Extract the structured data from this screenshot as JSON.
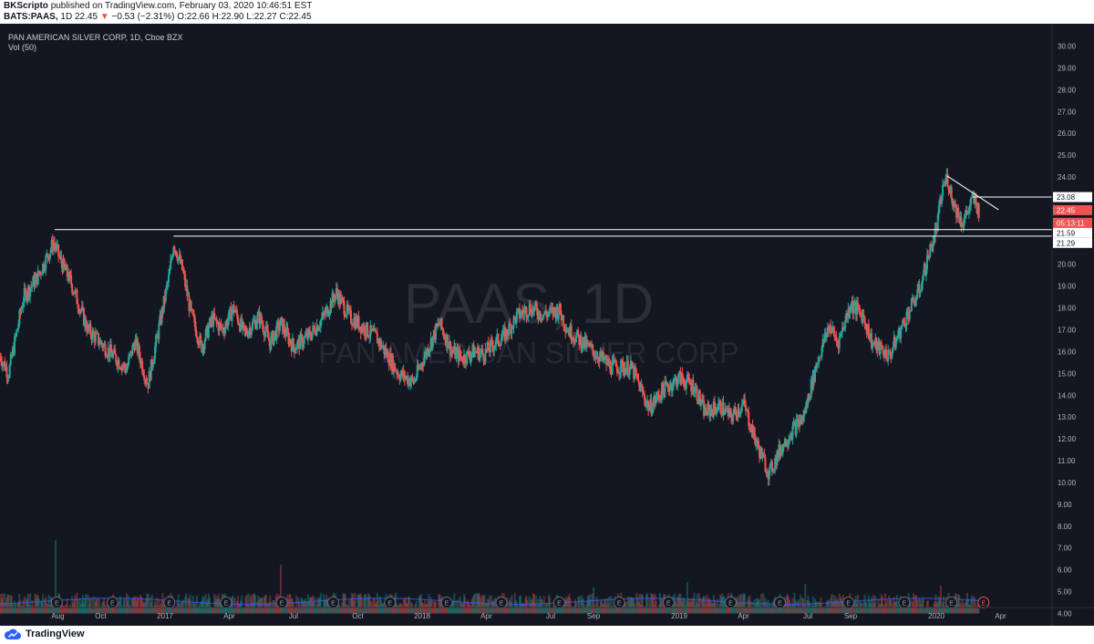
{
  "header": {
    "publisher": "BKScripto",
    "published_text": "published on TradingView.com, February 03, 2020 10:46:51 EST",
    "symbol": "BATS:PAAS,",
    "interval": "1D",
    "last": "22.45",
    "change": "−0.53 (−2.31%)",
    "ohlc": "O:22.66 H:22.90 L:22.27 C:22.45"
  },
  "legend": {
    "title": "PAN AMERICAN SILVER CORP, 1D, Cboe BZX",
    "volume": "Vol (50)"
  },
  "watermark": {
    "symbol": "PAAS, 1D",
    "name": "PAN AMERICAN SILVER CORP"
  },
  "footer": {
    "brand": "TradingView"
  },
  "colors": {
    "background": "#131722",
    "up": "#26a69a",
    "down": "#ef5350",
    "lines": "#ffffff",
    "axis_text": "#b2b5be",
    "volume_ma": "#2962ff"
  },
  "chart_data": {
    "type": "candlestick",
    "symbol": "PAAS",
    "interval": "1D",
    "y_axis": {
      "ticks": [
        "30.00",
        "29.00",
        "28.00",
        "27.00",
        "26.00",
        "25.00",
        "24.00",
        "23.00",
        "22.00",
        "21.00",
        "20.00",
        "19.00",
        "18.00",
        "17.00",
        "16.00",
        "15.00",
        "14.00",
        "13.00",
        "12.00",
        "11.00",
        "10.00",
        "9.00",
        "8.00",
        "7.00",
        "6.00",
        "5.00",
        "4.00"
      ],
      "range": [
        4,
        30
      ]
    },
    "x_axis": {
      "ticks": [
        {
          "label": "Aug",
          "x": 0.6
        },
        {
          "label": "Oct",
          "x": 2.6
        },
        {
          "label": "2017",
          "x": 5.6
        },
        {
          "label": "Apr",
          "x": 8.6
        },
        {
          "label": "Jul",
          "x": 11.6
        },
        {
          "label": "Oct",
          "x": 14.6
        },
        {
          "label": "2018",
          "x": 17.6
        },
        {
          "label": "Apr",
          "x": 20.6
        },
        {
          "label": "Jul",
          "x": 23.6
        },
        {
          "label": "Sep",
          "x": 25.6
        },
        {
          "label": "2019",
          "x": 29.6
        },
        {
          "label": "Apr",
          "x": 32.6
        },
        {
          "label": "Jul",
          "x": 35.6
        },
        {
          "label": "Sep",
          "x": 37.6
        },
        {
          "label": "2020",
          "x": 41.6
        },
        {
          "label": "Apr",
          "x": 44.6
        }
      ],
      "range": [
        -2.1,
        47
      ]
    },
    "price_path": [
      [
        -2.1,
        15.8
      ],
      [
        -1.7,
        15.0
      ],
      [
        -1.0,
        18.5
      ],
      [
        -0.3,
        19.5
      ],
      [
        0.4,
        21.0
      ],
      [
        0.8,
        20.0
      ],
      [
        1.2,
        19.2
      ],
      [
        2.0,
        17.0
      ],
      [
        3.0,
        16.0
      ],
      [
        3.8,
        15.2
      ],
      [
        4.2,
        16.5
      ],
      [
        4.8,
        14.5
      ],
      [
        5.3,
        17.0
      ],
      [
        5.8,
        19.5
      ],
      [
        6.0,
        21.0
      ],
      [
        6.4,
        19.8
      ],
      [
        6.8,
        17.8
      ],
      [
        7.3,
        16.2
      ],
      [
        7.8,
        17.5
      ],
      [
        8.3,
        17.0
      ],
      [
        8.8,
        18.0
      ],
      [
        9.3,
        16.8
      ],
      [
        10.0,
        17.6
      ],
      [
        10.5,
        16.4
      ],
      [
        11.0,
        17.3
      ],
      [
        11.6,
        16.2
      ],
      [
        12.4,
        16.8
      ],
      [
        13.0,
        17.6
      ],
      [
        13.6,
        18.7
      ],
      [
        14.2,
        17.6
      ],
      [
        14.6,
        17.3
      ],
      [
        15.5,
        16.6
      ],
      [
        16.5,
        15.0
      ],
      [
        17.2,
        14.6
      ],
      [
        17.8,
        16.0
      ],
      [
        18.4,
        17.3
      ],
      [
        19.0,
        16.0
      ],
      [
        19.5,
        15.7
      ],
      [
        20.0,
        16.0
      ],
      [
        20.5,
        15.9
      ],
      [
        21.0,
        16.4
      ],
      [
        21.5,
        16.8
      ],
      [
        22.0,
        17.6
      ],
      [
        22.6,
        18.0
      ],
      [
        23.3,
        17.7
      ],
      [
        24.0,
        17.9
      ],
      [
        24.4,
        17.0
      ],
      [
        25.0,
        16.5
      ],
      [
        25.6,
        16.0
      ],
      [
        26.4,
        15.3
      ],
      [
        27.0,
        15.3
      ],
      [
        27.4,
        15.2
      ],
      [
        28.2,
        13.4
      ],
      [
        28.8,
        14.2
      ],
      [
        29.6,
        14.8
      ],
      [
        30.3,
        14.4
      ],
      [
        30.8,
        13.2
      ],
      [
        31.5,
        13.5
      ],
      [
        32.0,
        13.0
      ],
      [
        32.6,
        13.6
      ],
      [
        33.2,
        11.8
      ],
      [
        33.8,
        10.4
      ],
      [
        34.3,
        11.5
      ],
      [
        34.8,
        12.3
      ],
      [
        35.4,
        13.0
      ],
      [
        36.0,
        15.4
      ],
      [
        36.6,
        17.2
      ],
      [
        37.0,
        16.4
      ],
      [
        37.6,
        18.2
      ],
      [
        38.2,
        17.6
      ],
      [
        38.6,
        16.4
      ],
      [
        39.4,
        15.8
      ],
      [
        40.2,
        17.6
      ],
      [
        40.8,
        18.8
      ],
      [
        41.2,
        20.3
      ],
      [
        41.6,
        21.6
      ],
      [
        41.9,
        23.5
      ],
      [
        42.1,
        24.0
      ],
      [
        42.4,
        22.8
      ],
      [
        42.8,
        21.9
      ],
      [
        43.1,
        22.5
      ],
      [
        43.3,
        23.0
      ],
      [
        43.6,
        22.45
      ]
    ],
    "volume": {
      "label": "Vol (50)",
      "range": [
        0,
        42000000
      ],
      "typical": 3500000,
      "spikes": [
        [
          0.5,
          21000000
        ],
        [
          11.0,
          14000000
        ],
        [
          25.6,
          7500000
        ],
        [
          30.0,
          9000000
        ],
        [
          35.5,
          8500000
        ],
        [
          41.8,
          8000000
        ]
      ]
    },
    "earnings_markers": [
      0.55,
      3.15,
      5.8,
      8.45,
      11.05,
      13.45,
      16.1,
      18.75,
      21.3,
      24.0,
      26.8,
      29.1,
      32.0,
      34.3,
      37.5,
      40.1,
      42.3,
      43.8
    ],
    "horizontal_lines": [
      {
        "from_x": 0.45,
        "y": 21.59
      },
      {
        "from_x": 6.0,
        "y": 21.29
      },
      {
        "from_x": 43.3,
        "y": 23.08
      }
    ],
    "trend_line": {
      "from": [
        42.1,
        24.05
      ],
      "to": [
        44.5,
        22.5
      ]
    },
    "price_labels": [
      {
        "text": "23.08",
        "y": 23.08,
        "style": "line"
      },
      {
        "text": "22.45",
        "y": 22.48,
        "style": "price"
      },
      {
        "text": "05:13:11",
        "y": 21.9,
        "style": "price"
      },
      {
        "text": "21.59",
        "y": 21.44,
        "style": "line"
      },
      {
        "text": "21.29",
        "y": 20.98,
        "style": "line"
      }
    ]
  }
}
